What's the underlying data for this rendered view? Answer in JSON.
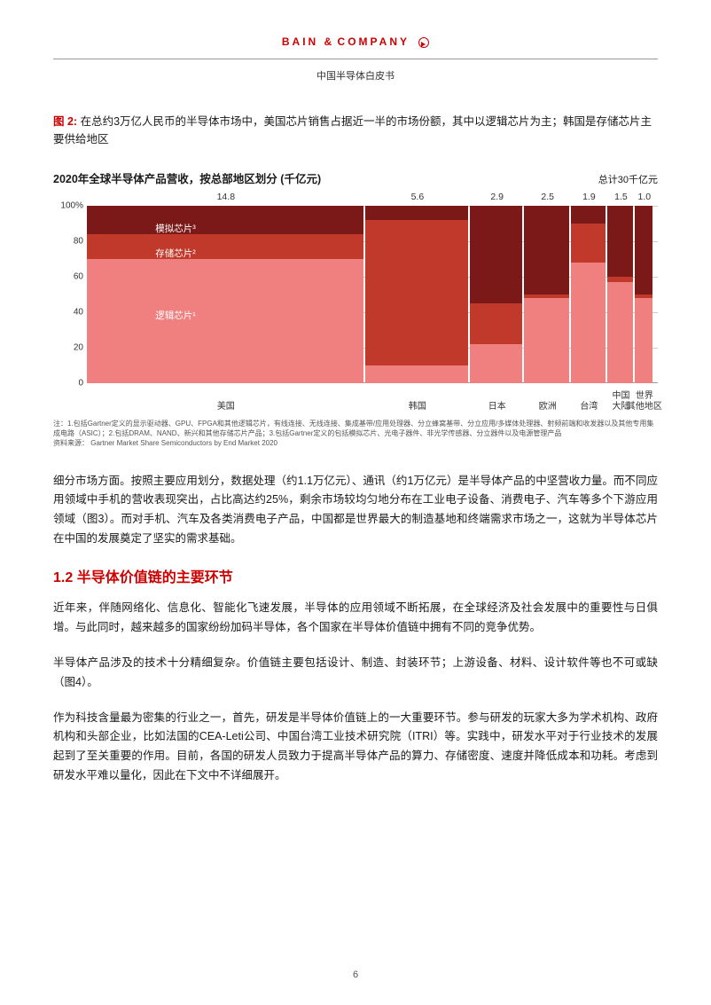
{
  "header": {
    "logo_text": "BAIN & COMPANY",
    "doc_title": "中国半导体白皮书"
  },
  "figure": {
    "label": "图 2:",
    "caption": "在总约3万亿人民币的半导体市场中，美国芯片销售占据近一半的市场份额，其中以逻辑芯片为主；韩国是存储芯片主要供给地区",
    "chart_title": "2020年全球半导体产品营收，按总部地区划分 (千亿元)",
    "total_label": "总计30千亿元",
    "style": {
      "type": "stacked-marimekko",
      "background": "#ffffff",
      "grid_color": "#cccccc",
      "axis_color": "#999999",
      "label_fontsize": 10,
      "value_fontsize": 10.5,
      "ylim": [
        0,
        100
      ],
      "ytick_step": 20,
      "yaxis_suffix_top": "%"
    },
    "yticks": [
      "0",
      "20",
      "40",
      "60",
      "80",
      "100%"
    ],
    "categories": [
      {
        "name": "美国",
        "value": 14.8,
        "width_pct": 48.7,
        "left_pct": 0.0,
        "segments": {
          "logic": 70,
          "memory": 14,
          "analog": 16
        }
      },
      {
        "name": "韩国",
        "value": 5.6,
        "width_pct": 18.4,
        "left_pct": 48.7,
        "segments": {
          "logic": 10,
          "memory": 82,
          "analog": 8
        }
      },
      {
        "name": "日本",
        "value": 2.9,
        "width_pct": 9.5,
        "left_pct": 67.1,
        "segments": {
          "logic": 22,
          "memory": 23,
          "analog": 55
        }
      },
      {
        "name": "欧洲",
        "value": 2.5,
        "width_pct": 8.2,
        "left_pct": 76.6,
        "segments": {
          "logic": 48,
          "memory": 2,
          "analog": 50
        }
      },
      {
        "name": "台湾",
        "value": 1.9,
        "width_pct": 6.3,
        "left_pct": 84.8,
        "segments": {
          "logic": 68,
          "memory": 22,
          "analog": 10
        }
      },
      {
        "name": "中国\n大陆",
        "value": 1.5,
        "width_pct": 4.9,
        "left_pct": 91.1,
        "segments": {
          "logic": 57,
          "memory": 3,
          "analog": 40
        }
      },
      {
        "name": "世界\n其他地区",
        "value": 1.0,
        "width_pct": 3.3,
        "left_pct": 96.0,
        "segments": {
          "logic": 48,
          "memory": 2,
          "analog": 50
        }
      }
    ],
    "segment_defs": {
      "logic": {
        "label": "逻辑芯片¹",
        "color": "#f08080"
      },
      "memory": {
        "label": "存储芯片²",
        "color": "#c0392b"
      },
      "analog": {
        "label": "模拟芯片³",
        "color": "#7b1818"
      }
    },
    "segment_label_positions": {
      "analog": {
        "left_pct": 12,
        "top_pct": 9
      },
      "memory": {
        "left_pct": 12,
        "top_pct": 23
      },
      "logic": {
        "left_pct": 12,
        "top_pct": 58
      }
    },
    "footnote": "注：1.包括Gartner定义的显示驱动器、GPU、FPGA和其他逻辑芯片，有线连接、无线连接、集成基带/应用处理器、分立蜂窝基带、分立应用/多媒体处理器、射频前端和收发器以及其他专用集成电路（ASIC）；2.包括DRAM、NAND、新兴和其他存储芯片产品；3.包括Gartner定义的包括模拟芯片、光电子器件、非光学传感器、分立器件以及电源管理产品",
    "source": "资料来源：  Gartner Market Share Semiconductors by End Market 2020"
  },
  "paragraphs": {
    "p1": "细分市场方面。按照主要应用划分，数据处理（约1.1万亿元）、通讯（约1万亿元）是半导体产品的中坚营收力量。而不同应用领域中手机的营收表现突出，占比高达约25%，剩余市场较均匀地分布在工业电子设备、消费电子、汽车等多个下游应用领域（图3）。而对手机、汽车及各类消费电子产品，中国都是世界最大的制造基地和终端需求市场之一，这就为半导体芯片在中国的发展奠定了坚实的需求基础。",
    "h1": "1.2 半导体价值链的主要环节",
    "p2": "近年来，伴随网络化、信息化、智能化飞速发展，半导体的应用领域不断拓展，在全球经济及社会发展中的重要性与日俱增。与此同时，越来越多的国家纷纷加码半导体，各个国家在半导体价值链中拥有不同的竞争优势。",
    "p3": "半导体产品涉及的技术十分精细复杂。价值链主要包括设计、制造、封装环节；上游设备、材料、设计软件等也不可或缺（图4）。",
    "p4": "作为科技含量最为密集的行业之一，首先，研发是半导体价值链上的一大重要环节。参与研发的玩家大多为学术机构、政府机构和头部企业，比如法国的CEA-Leti公司、中国台湾工业技术研究院（ITRI）等。实践中，研发水平对于行业技术的发展起到了至关重要的作用。目前，各国的研发人员致力于提高半导体产品的算力、存储密度、速度并降低成本和功耗。考虑到研发水平难以量化，因此在下文中不详细展开。"
  },
  "page_number": "6"
}
